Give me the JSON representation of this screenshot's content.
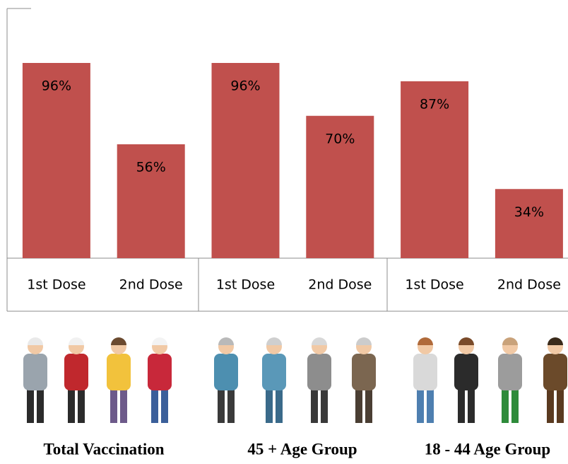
{
  "chart_data": {
    "type": "bar",
    "categories": [
      "1st Dose",
      "2nd Dose",
      "1st Dose",
      "2nd Dose",
      "1st Dose",
      "2nd Dose"
    ],
    "values": [
      96,
      56,
      96,
      70,
      87,
      34
    ],
    "value_labels": [
      "96%",
      "56%",
      "96%",
      "70%",
      "87%",
      "34%"
    ],
    "color": "#c0504d",
    "ylim": [
      0,
      120
    ]
  },
  "captions": [
    "Total Vaccination",
    "45 + Age Group",
    "18 - 44 Age Group"
  ]
}
